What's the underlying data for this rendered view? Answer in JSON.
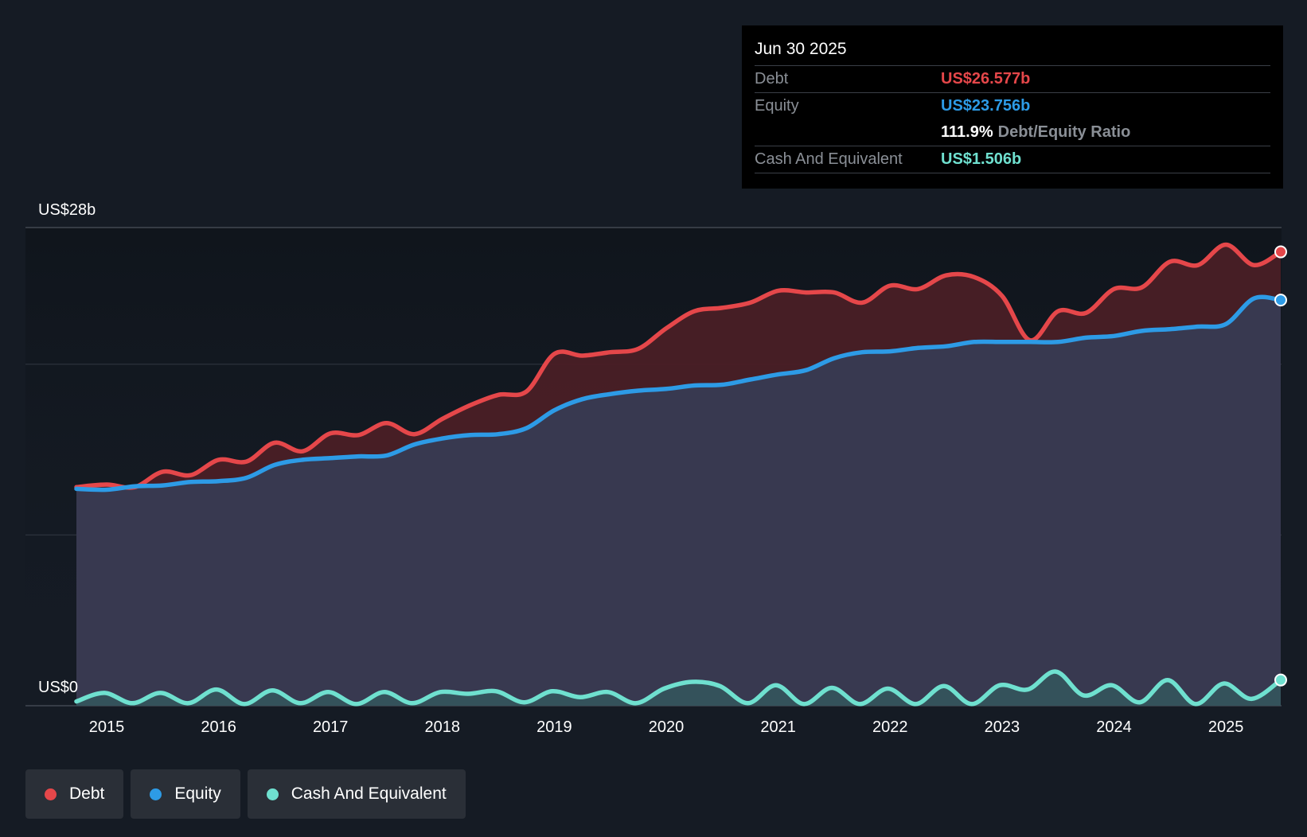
{
  "tooltip": {
    "date": "Jun 30 2025",
    "debt_label": "Debt",
    "debt_value": "US$26.577b",
    "equity_label": "Equity",
    "equity_value": "US$23.756b",
    "ratio_value": "111.9%",
    "ratio_label": "Debt/Equity Ratio",
    "cash_label": "Cash And Equivalent",
    "cash_value": "US$1.506b"
  },
  "legend": {
    "debt": "Debt",
    "equity": "Equity",
    "cash": "Cash And Equivalent"
  },
  "colors": {
    "background": "#151b24",
    "debt": "#e5474a",
    "equity": "#2d9be6",
    "cash": "#6fe0cf",
    "grid": "#2c323c"
  },
  "chart_data": {
    "type": "area",
    "title": "",
    "xlabel": "",
    "ylabel": "",
    "y_top_label": "US$28b",
    "y_bottom_label": "US$0",
    "ylim": [
      0,
      28
    ],
    "xlim": [
      2014.73,
      2025.49
    ],
    "x_ticks": [
      2015,
      2016,
      2017,
      2018,
      2019,
      2020,
      2021,
      2022,
      2023,
      2024,
      2025
    ],
    "x_tick_labels": [
      "2015",
      "2016",
      "2017",
      "2018",
      "2019",
      "2020",
      "2021",
      "2022",
      "2023",
      "2024",
      "2025"
    ],
    "series": [
      {
        "name": "Debt",
        "x": [
          2014.73,
          2015.0,
          2015.25,
          2015.5,
          2015.75,
          2016.0,
          2016.25,
          2016.5,
          2016.75,
          2017.0,
          2017.25,
          2017.5,
          2017.75,
          2018.0,
          2018.25,
          2018.5,
          2018.75,
          2019.0,
          2019.25,
          2019.5,
          2019.75,
          2020.0,
          2020.25,
          2020.5,
          2020.75,
          2021.0,
          2021.25,
          2021.5,
          2021.75,
          2022.0,
          2022.25,
          2022.5,
          2022.75,
          2023.0,
          2023.25,
          2023.5,
          2023.75,
          2024.0,
          2024.25,
          2024.5,
          2024.75,
          2025.0,
          2025.25,
          2025.49
        ],
        "values": [
          12.8,
          12.95,
          12.8,
          13.7,
          13.5,
          14.4,
          14.3,
          15.4,
          14.9,
          15.95,
          15.85,
          16.55,
          15.9,
          16.8,
          17.6,
          18.2,
          18.4,
          20.6,
          20.5,
          20.7,
          20.9,
          22.1,
          23.1,
          23.3,
          23.6,
          24.3,
          24.2,
          24.2,
          23.6,
          24.6,
          24.4,
          25.2,
          25.1,
          24.0,
          21.4,
          23.1,
          23.0,
          24.4,
          24.5,
          26.0,
          25.8,
          27.0,
          25.8,
          26.577
        ]
      },
      {
        "name": "Equity",
        "x": [
          2014.73,
          2015.0,
          2015.25,
          2015.5,
          2015.75,
          2016.0,
          2016.25,
          2016.5,
          2016.75,
          2017.0,
          2017.25,
          2017.5,
          2017.75,
          2018.0,
          2018.25,
          2018.5,
          2018.75,
          2019.0,
          2019.25,
          2019.5,
          2019.75,
          2020.0,
          2020.25,
          2020.5,
          2020.75,
          2021.0,
          2021.25,
          2021.5,
          2021.75,
          2022.0,
          2022.25,
          2022.5,
          2022.75,
          2023.0,
          2023.25,
          2023.5,
          2023.75,
          2024.0,
          2024.25,
          2024.5,
          2024.75,
          2025.0,
          2025.25,
          2025.49
        ],
        "values": [
          12.7,
          12.65,
          12.85,
          12.9,
          13.1,
          13.15,
          13.35,
          14.1,
          14.4,
          14.5,
          14.6,
          14.65,
          15.3,
          15.65,
          15.85,
          15.9,
          16.25,
          17.3,
          17.95,
          18.25,
          18.45,
          18.55,
          18.75,
          18.8,
          19.1,
          19.4,
          19.65,
          20.35,
          20.7,
          20.75,
          20.95,
          21.05,
          21.3,
          21.3,
          21.3,
          21.3,
          21.55,
          21.65,
          21.95,
          22.05,
          22.2,
          22.35,
          23.85,
          23.756
        ]
      },
      {
        "name": "Cash And Equivalent",
        "x": [
          2014.73,
          2014.98,
          2015.23,
          2015.48,
          2015.73,
          2015.98,
          2016.23,
          2016.48,
          2016.73,
          2016.98,
          2017.23,
          2017.48,
          2017.73,
          2017.98,
          2018.23,
          2018.48,
          2018.73,
          2018.98,
          2019.23,
          2019.48,
          2019.73,
          2019.98,
          2020.23,
          2020.48,
          2020.73,
          2020.98,
          2021.23,
          2021.48,
          2021.73,
          2021.98,
          2022.23,
          2022.48,
          2022.73,
          2022.98,
          2023.23,
          2023.48,
          2023.73,
          2023.98,
          2024.23,
          2024.48,
          2024.73,
          2024.98,
          2025.23,
          2025.49
        ],
        "values": [
          0.25,
          0.75,
          0.15,
          0.75,
          0.15,
          0.95,
          0.1,
          0.9,
          0.15,
          0.8,
          0.1,
          0.8,
          0.15,
          0.8,
          0.7,
          0.85,
          0.2,
          0.85,
          0.5,
          0.8,
          0.15,
          1.0,
          1.4,
          1.15,
          0.15,
          1.2,
          0.1,
          1.05,
          0.1,
          1.0,
          0.1,
          1.15,
          0.1,
          1.2,
          0.95,
          2.0,
          0.6,
          1.2,
          0.2,
          1.5,
          0.1,
          1.3,
          0.4,
          1.506
        ]
      }
    ]
  }
}
